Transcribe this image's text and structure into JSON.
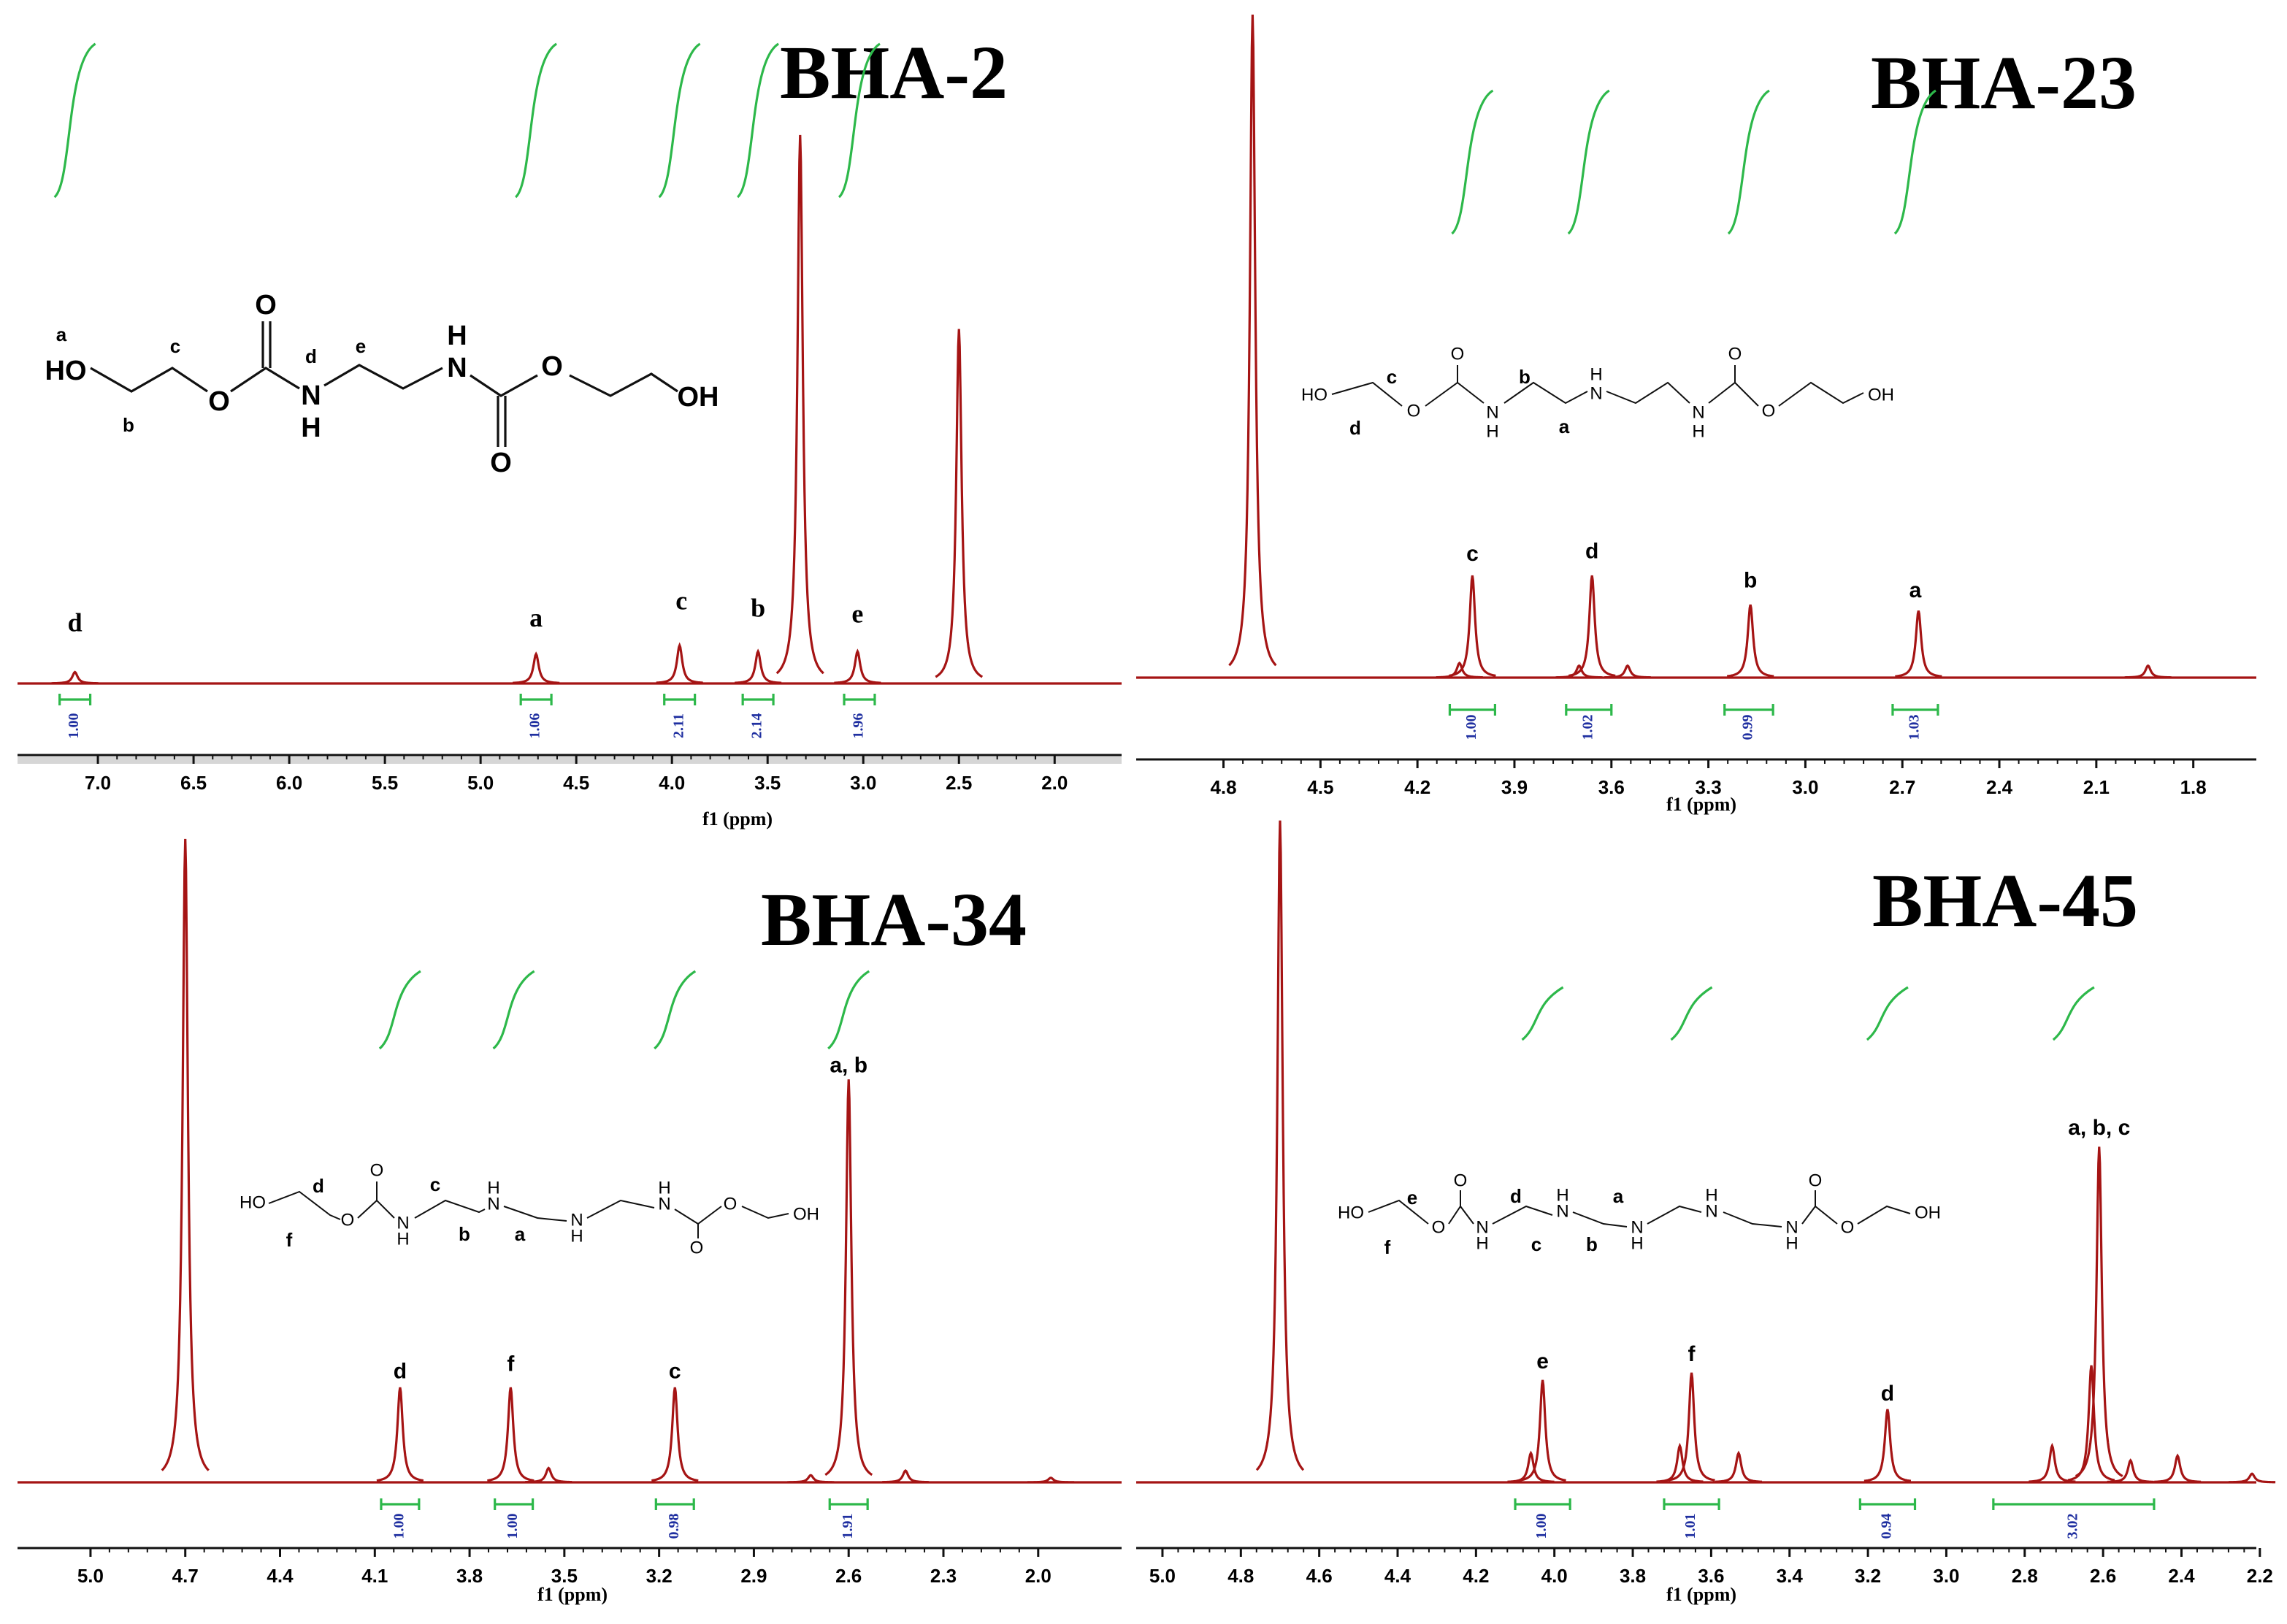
{
  "chart_data": [
    {
      "type": "spectrum",
      "title": "BHA-2",
      "xlabel": "f1 (ppm)",
      "xlim": [
        7.42,
        1.65
      ],
      "xticks": [
        {
          "value": 7,
          "label": "7.0"
        },
        6.5,
        {
          "value": 6,
          "label": "6.0"
        },
        5.5,
        {
          "value": 5,
          "label": "5.0"
        },
        4.5,
        {
          "value": 4,
          "label": "4.0"
        },
        3.5,
        {
          "value": 3,
          "label": "3.0"
        },
        2.5,
        {
          "value": 2,
          "label": "2.0"
        }
      ],
      "ylim": [
        0,
        100
      ],
      "color": "#a51414",
      "peaks": {
        "x": [
          7.12,
          4.71,
          3.96,
          3.55,
          3.33,
          3.03,
          2.5
        ],
        "values": [
          1.7,
          4.4,
          5.7,
          4.8,
          82,
          4.8,
          53
        ]
      },
      "annotations": [
        {
          "text": "d",
          "x": 7.12,
          "y": 8.7
        },
        {
          "text": "a",
          "x": 4.71,
          "y": 9.4
        },
        {
          "text": "c",
          "x": 3.95,
          "y": 12
        },
        {
          "text": "b",
          "x": 3.55,
          "y": 10.9
        },
        {
          "text": "e",
          "x": 3.03,
          "y": 10
        }
      ],
      "integrals": {
        "color": "#2db84a",
        "values": [
          1,
          1.06,
          2.11,
          2.14,
          1.96
        ],
        "value_labels": [
          "1.00",
          "1.06",
          "2.11",
          "2.14",
          "1.96"
        ],
        "ranges": [
          [
            7.2,
            7.04
          ],
          [
            4.79,
            4.63
          ],
          [
            4.04,
            3.88
          ],
          [
            3.63,
            3.47
          ],
          [
            3.1,
            2.94
          ]
        ]
      },
      "structure": [
        "a",
        "HO",
        "c",
        "b",
        "O",
        "O",
        "d",
        "N",
        "H",
        "e",
        "H",
        "N",
        "O",
        "O",
        "OH"
      ]
    },
    {
      "type": "spectrum",
      "title": "BHA-23",
      "xlabel": "f1 (ppm)",
      "xlim": [
        5.07,
        1.605
      ],
      "xticks": [
        4.8,
        4.5,
        4.2,
        3.9,
        3.6,
        3.3,
        {
          "value": 3,
          "label": "3.0"
        },
        2.7,
        2.4,
        2.1,
        1.8
      ],
      "ylim": [
        0,
        100
      ],
      "color": "#a51414",
      "peaks": {
        "x": [
          4.71,
          4.07,
          4.03,
          3.7,
          3.66,
          3.55,
          3.17,
          2.65,
          1.94
        ],
        "values": [
          100,
          2.2,
          15.4,
          1.8,
          15.4,
          1.8,
          11,
          10.1,
          1.8
        ]
      },
      "annotations": [
        {
          "text": "c",
          "x": 4.03,
          "y": 18.5
        },
        {
          "text": "d",
          "x": 3.66,
          "y": 18.9
        },
        {
          "text": "b",
          "x": 3.17,
          "y": 14.5
        },
        {
          "text": "a",
          "x": 2.66,
          "y": 13
        }
      ],
      "integrals": {
        "color": "#2db84a",
        "values": [
          1,
          1.02,
          0.99,
          1.03
        ],
        "value_labels": [
          "1.00",
          "1.02",
          "0.99",
          "1.03"
        ],
        "ranges": [
          [
            4.1,
            3.96
          ],
          [
            3.74,
            3.6
          ],
          [
            3.25,
            3.1
          ],
          [
            2.73,
            2.59
          ]
        ]
      },
      "structure": [
        "c",
        "HO",
        "d",
        "O",
        "O",
        "N",
        "H",
        "b",
        "a",
        "H",
        "N",
        "N",
        "H",
        "O",
        "O",
        "OH"
      ]
    },
    {
      "type": "spectrum",
      "title": "BHA-34",
      "xlabel": "f1 (ppm)",
      "xlim": [
        5.231,
        1.736
      ],
      "xticks": [
        {
          "value": 5,
          "label": "5.0"
        },
        4.7,
        4.4,
        4.1,
        3.8,
        3.5,
        3.2,
        2.9,
        2.6,
        2.3,
        {
          "value": 2,
          "label": "2.0"
        }
      ],
      "ylim": [
        0,
        100
      ],
      "color": "#a51414",
      "peaks": {
        "x": [
          4.7,
          4.02,
          3.67,
          3.55,
          3.15,
          2.72,
          2.6,
          2.42,
          1.96
        ],
        "values": [
          99,
          14.6,
          14.6,
          2.2,
          14.6,
          1.1,
          62,
          1.8,
          0.7
        ]
      },
      "annotations": [
        {
          "text": "d",
          "x": 4.02,
          "y": 16.9
        },
        {
          "text": "f",
          "x": 3.67,
          "y": 18
        },
        {
          "text": "c",
          "x": 3.15,
          "y": 16.9
        },
        {
          "text": "a, b",
          "x": 2.6,
          "y": 64
        }
      ],
      "integrals": {
        "color": "#2db84a",
        "values": [
          1,
          1,
          0.98,
          1.91
        ],
        "value_labels": [
          "1.00",
          "1.00",
          "0.98",
          "1.91"
        ],
        "ranges": [
          [
            4.08,
            3.96
          ],
          [
            3.72,
            3.6
          ],
          [
            3.21,
            3.09
          ],
          [
            2.66,
            2.54
          ]
        ]
      },
      "structure": [
        "d",
        "HO",
        "f",
        "O",
        "O",
        "c",
        "N",
        "H",
        "b",
        "H",
        "N",
        "a",
        "N",
        "H",
        "H",
        "N",
        "O",
        "O",
        "OH"
      ]
    },
    {
      "type": "spectrum",
      "title": "BHA-45",
      "xlabel": "f1 (ppm)",
      "xlim": [
        5.067,
        2.209
      ],
      "xticks": [
        {
          "value": 5,
          "label": "5.0"
        },
        4.8,
        4.6,
        4.4,
        4.2,
        {
          "value": 4,
          "label": "4.0"
        },
        3.8,
        3.6,
        3.4,
        3.2,
        {
          "value": 3,
          "label": "3.0"
        },
        2.8,
        2.6,
        2.4,
        2.2
      ],
      "ylim": [
        0,
        100
      ],
      "color": "#a51414",
      "peaks": {
        "x": [
          4.7,
          4.06,
          4.03,
          3.68,
          3.65,
          3.53,
          3.15,
          2.73,
          2.63,
          2.61,
          2.53,
          2.41,
          2.22
        ],
        "values": [
          99.6,
          4.4,
          15.4,
          5.5,
          16.5,
          4.4,
          11,
          5.5,
          17.6,
          50.5,
          3.3,
          4,
          1.3
        ]
      },
      "annotations": [
        {
          "text": "e",
          "x": 4.03,
          "y": 18
        },
        {
          "text": "f",
          "x": 3.65,
          "y": 19.1
        },
        {
          "text": "d",
          "x": 3.15,
          "y": 13.2
        },
        {
          "text": "a, b, c",
          "x": 2.61,
          "y": 53.2
        }
      ],
      "integrals": {
        "color": "#2db84a",
        "values": [
          1,
          1.01,
          0.94,
          3.02
        ],
        "value_labels": [
          "1.00",
          "1.01",
          "0.94",
          "3.02"
        ],
        "ranges": [
          [
            4.1,
            3.96
          ],
          [
            3.72,
            3.58
          ],
          [
            3.22,
            3.08
          ],
          [
            2.88,
            2.47
          ]
        ]
      },
      "structure": [
        "e",
        "HO",
        "f",
        "O",
        "O",
        "d",
        "N",
        "H",
        "c",
        "H",
        "N",
        "a",
        "b",
        "N",
        "H",
        "H",
        "N",
        "N",
        "H",
        "O",
        "O",
        "OH"
      ]
    }
  ]
}
